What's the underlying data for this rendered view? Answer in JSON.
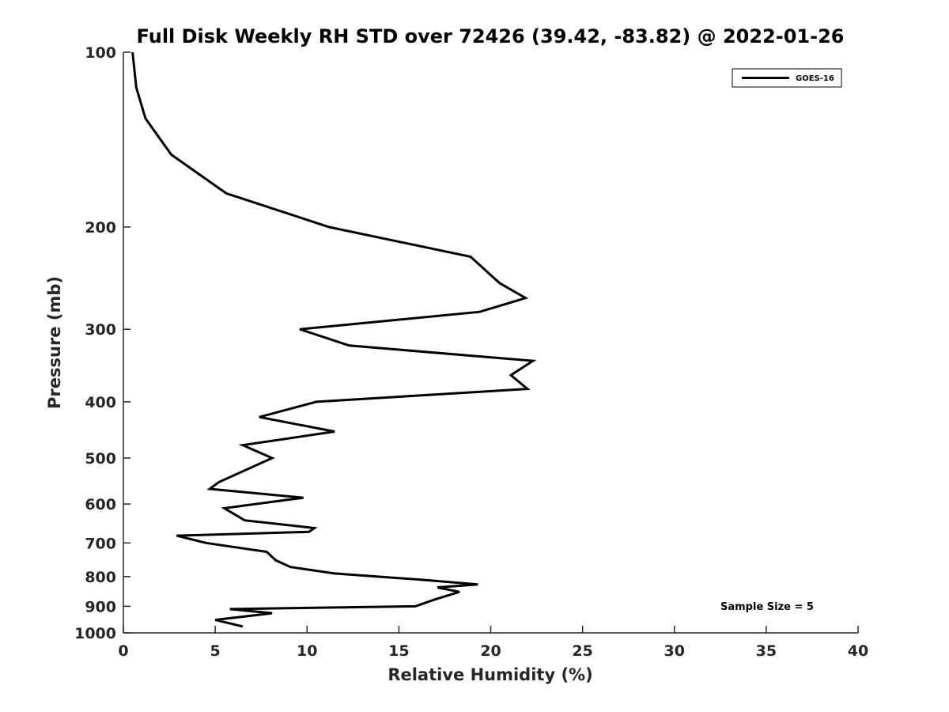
{
  "chart_data": {
    "type": "line",
    "title": "Full Disk Weekly RH STD over 72426 (39.42, -83.82) @ 2022-01-26",
    "xlabel": "Relative Humidity (%)",
    "ylabel": "Pressure (mb)",
    "xlim": [
      0,
      40
    ],
    "ylim": [
      100,
      1000
    ],
    "yscale": "log",
    "y_reversed": true,
    "xticks": [
      0,
      5,
      10,
      15,
      20,
      25,
      30,
      35,
      40
    ],
    "yticks": [
      100,
      200,
      300,
      400,
      500,
      600,
      700,
      800,
      900,
      1000
    ],
    "grid": false,
    "legend": {
      "position": "top-right",
      "entries": [
        "GOES-16"
      ]
    },
    "annotation": "Sample Size = 5",
    "series": [
      {
        "name": "GOES-16",
        "color": "#000000",
        "points": [
          [
            0.5,
            100
          ],
          [
            0.7,
            115
          ],
          [
            1.2,
            130
          ],
          [
            2.6,
            150
          ],
          [
            5.6,
            175
          ],
          [
            11.2,
            200
          ],
          [
            18.9,
            225
          ],
          [
            20.5,
            250
          ],
          [
            21.9,
            265
          ],
          [
            19.4,
            280
          ],
          [
            9.6,
            300
          ],
          [
            12.3,
            320
          ],
          [
            22.3,
            340
          ],
          [
            21.1,
            360
          ],
          [
            22.0,
            380
          ],
          [
            10.5,
            400
          ],
          [
            7.4,
            425
          ],
          [
            11.5,
            450
          ],
          [
            6.5,
            475
          ],
          [
            8.1,
            500
          ],
          [
            5.2,
            550
          ],
          [
            4.7,
            565
          ],
          [
            9.8,
            585
          ],
          [
            5.5,
            610
          ],
          [
            6.6,
            640
          ],
          [
            10.4,
            660
          ],
          [
            10.1,
            670
          ],
          [
            2.9,
            680
          ],
          [
            4.5,
            700
          ],
          [
            7.8,
            725
          ],
          [
            8.3,
            750
          ],
          [
            9.1,
            770
          ],
          [
            11.5,
            790
          ],
          [
            16.2,
            810
          ],
          [
            19.3,
            825
          ],
          [
            17.1,
            835
          ],
          [
            18.3,
            850
          ],
          [
            17.0,
            875
          ],
          [
            15.9,
            900
          ],
          [
            5.8,
            910
          ],
          [
            8.1,
            925
          ],
          [
            5.0,
            950
          ],
          [
            6.5,
            975
          ]
        ]
      }
    ]
  }
}
